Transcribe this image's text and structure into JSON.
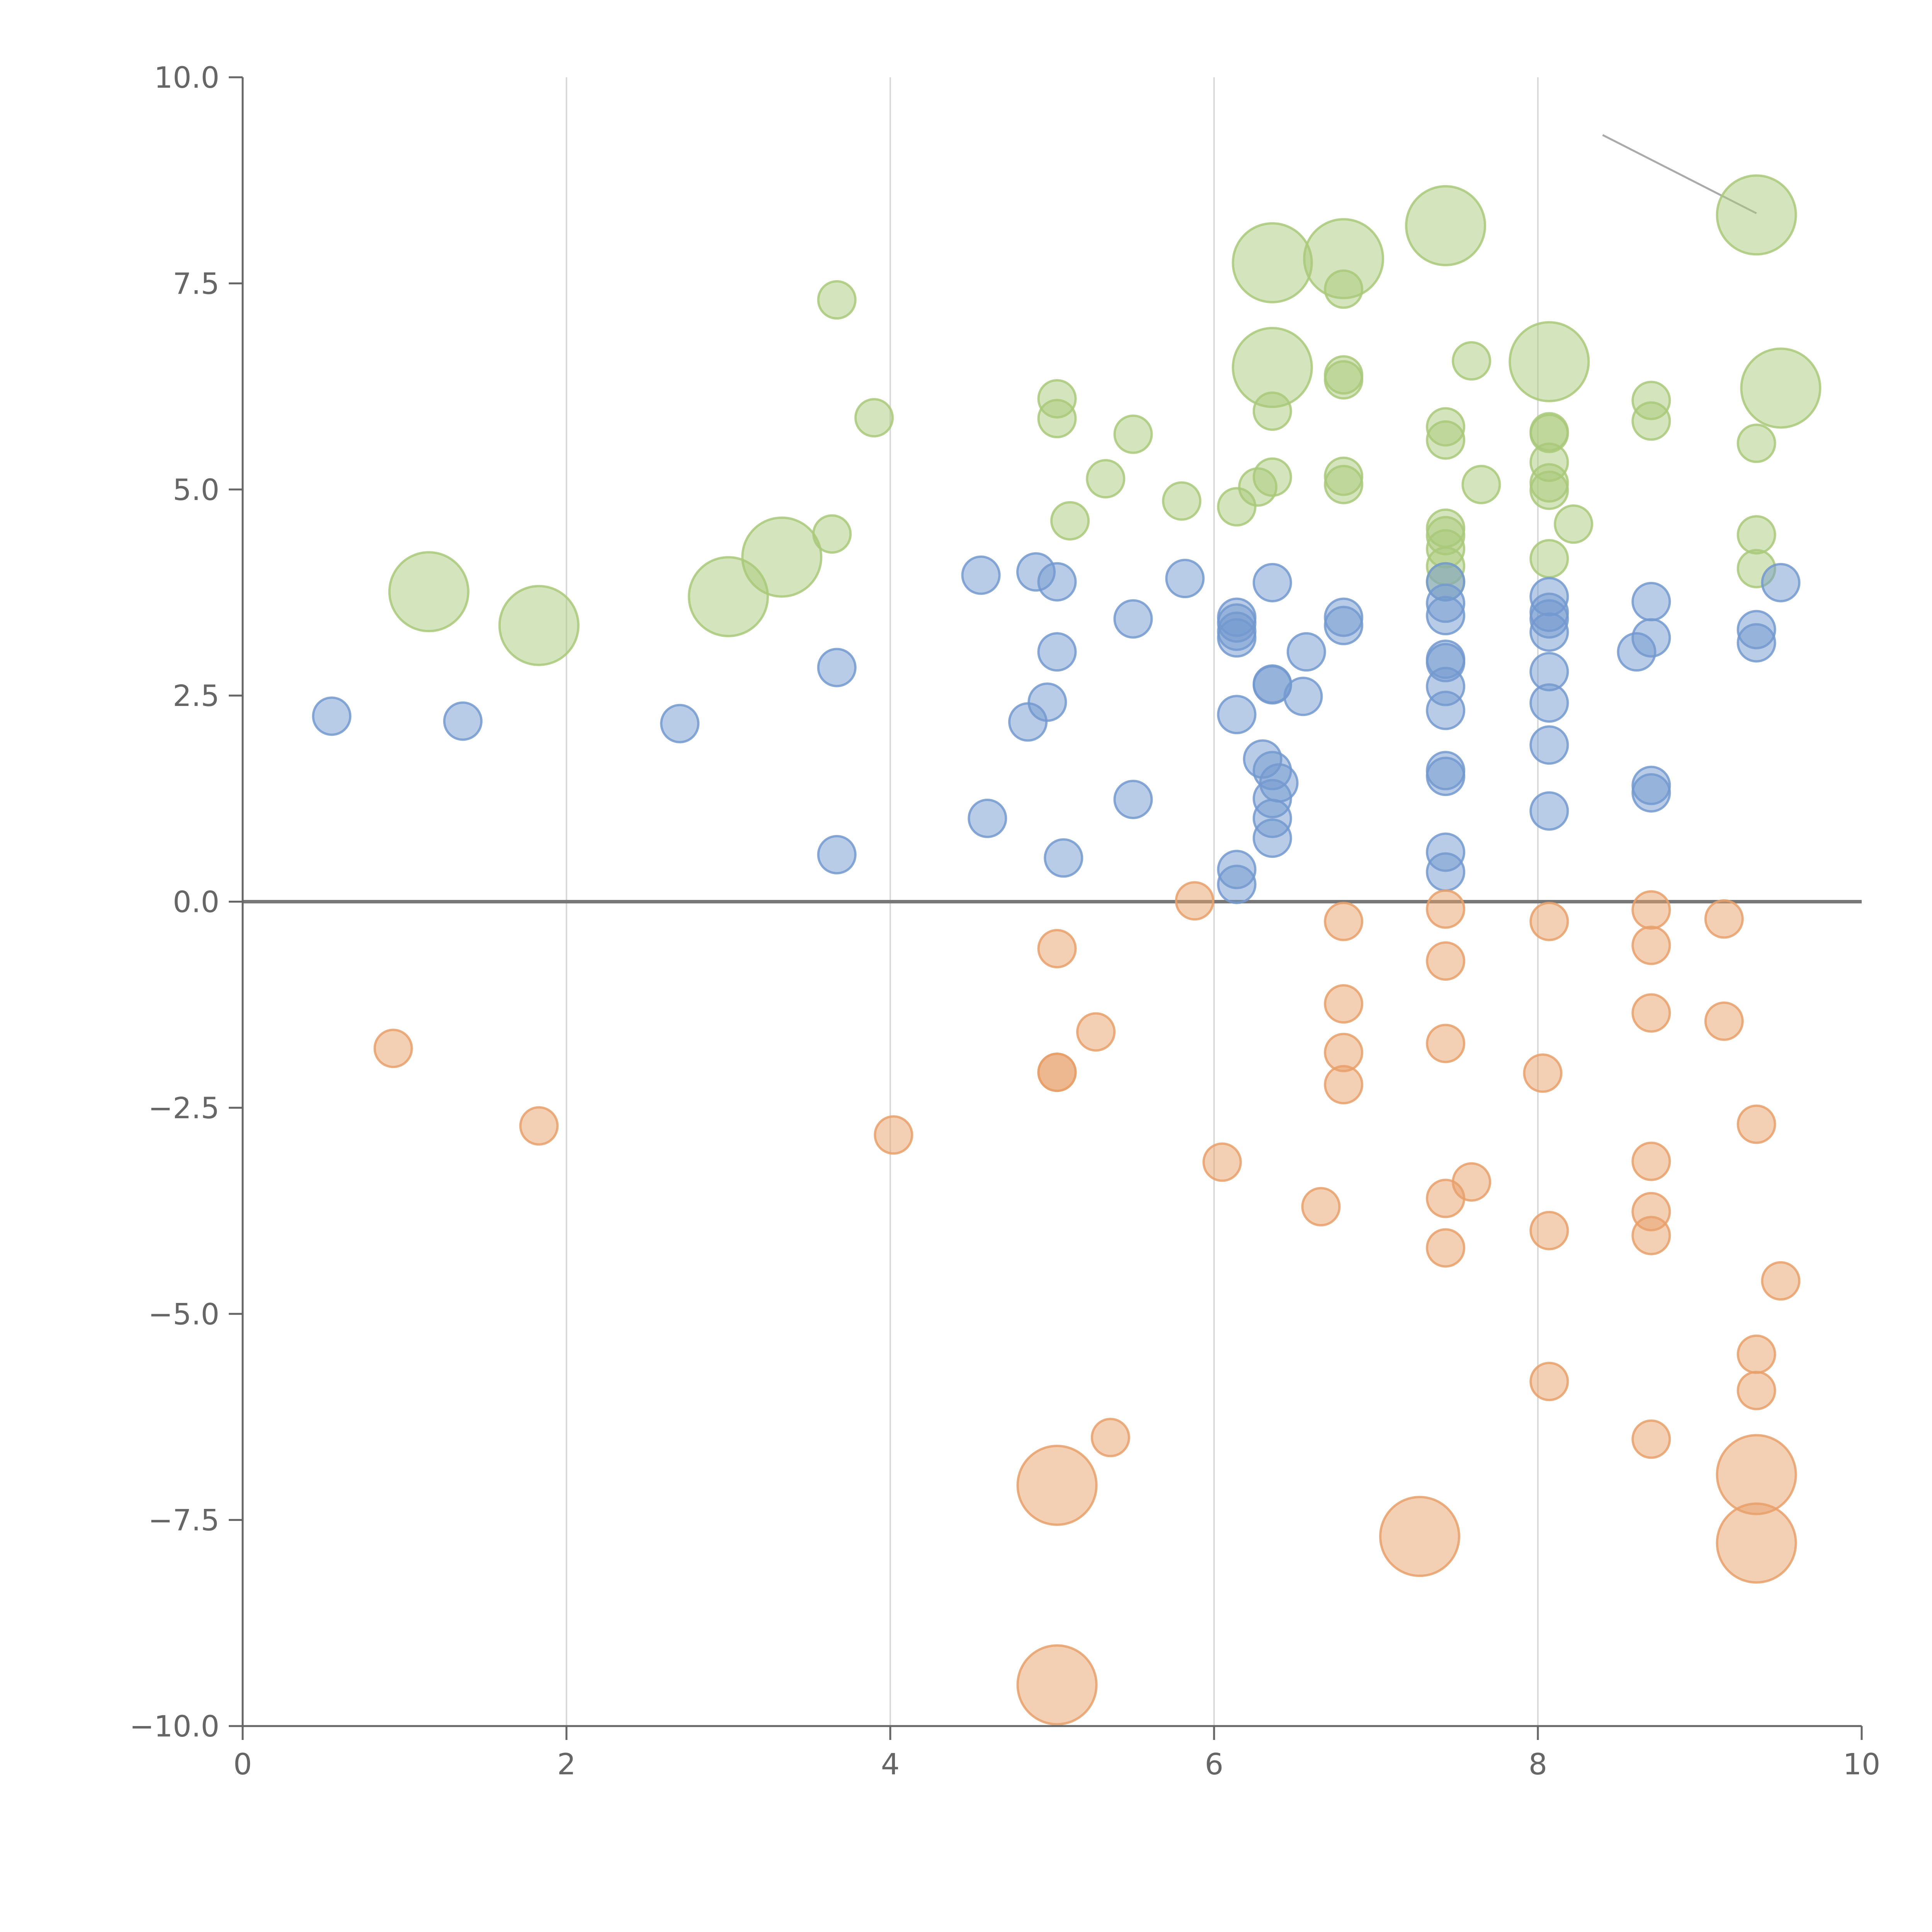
{
  "chart_data": {
    "type": "scatter",
    "title": "",
    "xlabel": "",
    "ylabel": "",
    "xlim": [
      0,
      10
    ],
    "ylim": [
      -10,
      10
    ],
    "x_ticks": [
      0,
      2,
      4,
      6,
      8,
      10
    ],
    "x_tick_labels": [
      "0",
      "2",
      "4",
      "6",
      "8",
      "10"
    ],
    "y_ticks": [
      -10,
      -7.5,
      -5,
      -2.5,
      0,
      2.5,
      5,
      7.5,
      10
    ],
    "y_tick_labels": [
      "−10.0",
      "−7.5",
      "−5.0",
      "−2.5",
      "0.0",
      "2.5",
      "5.0",
      "7.5",
      "10.0"
    ],
    "vertical_gridlines_at": [
      2,
      4,
      6,
      8
    ],
    "reference_line_y": 0,
    "annotation_leader_line": {
      "from": [
        8.4,
        9.3
      ],
      "to": [
        9.35,
        8.35
      ]
    },
    "colors": {
      "green": "#a9c97a",
      "blue": "#7399cf",
      "orange": "#e8a06a",
      "axis": "#666666",
      "grid": "#d9d9d9",
      "zero_line": "#777777"
    },
    "series": [
      {
        "name": "green",
        "color": "#a9c97a",
        "points": [
          [
            3.67,
            7.3,
            1
          ],
          [
            3.9,
            5.87,
            1
          ],
          [
            3.64,
            4.46,
            1
          ],
          [
            5.03,
            6.1,
            1
          ],
          [
            5.03,
            5.86,
            1
          ],
          [
            5.5,
            5.67,
            1
          ],
          [
            5.33,
            5.13,
            1
          ],
          [
            5.11,
            4.62,
            1
          ],
          [
            5.8,
            4.86,
            1
          ],
          [
            6.27,
            5.03,
            1
          ],
          [
            6.14,
            4.79,
            1
          ],
          [
            6.36,
            5.15,
            1
          ],
          [
            6.36,
            5.95,
            1
          ],
          [
            6.8,
            7.43,
            1
          ],
          [
            6.8,
            6.39,
            1
          ],
          [
            6.8,
            6.33,
            1
          ],
          [
            6.8,
            5.16,
            1
          ],
          [
            6.8,
            5.06,
            1
          ],
          [
            7.43,
            5.76,
            1
          ],
          [
            7.43,
            5.6,
            1
          ],
          [
            7.43,
            4.53,
            1
          ],
          [
            7.43,
            4.44,
            1
          ],
          [
            7.43,
            4.28,
            1
          ],
          [
            7.43,
            4.07,
            1
          ],
          [
            7.43,
            3.88,
            1
          ],
          [
            7.59,
            6.56,
            1
          ],
          [
            7.65,
            5.06,
            1
          ],
          [
            8.07,
            5.7,
            1
          ],
          [
            8.07,
            5.68,
            1
          ],
          [
            8.07,
            5.33,
            1
          ],
          [
            8.07,
            5.08,
            1
          ],
          [
            8.07,
            4.99,
            1
          ],
          [
            8.07,
            4.16,
            1
          ],
          [
            8.22,
            4.58,
            1
          ],
          [
            8.7,
            6.08,
            1
          ],
          [
            8.7,
            5.83,
            1
          ],
          [
            9.35,
            5.56,
            1
          ],
          [
            9.35,
            4.45,
            1
          ],
          [
            9.35,
            4.04,
            1
          ],
          [
            1.15,
            3.76,
            3
          ],
          [
            1.83,
            3.35,
            3
          ],
          [
            3.0,
            3.7,
            3
          ],
          [
            3.33,
            4.18,
            3
          ],
          [
            6.36,
            7.75,
            3
          ],
          [
            6.36,
            6.48,
            3
          ],
          [
            6.8,
            7.8,
            3
          ],
          [
            7.43,
            8.2,
            3
          ],
          [
            8.07,
            6.55,
            3
          ],
          [
            9.35,
            8.33,
            3
          ],
          [
            9.5,
            6.23,
            3
          ]
        ]
      },
      {
        "name": "blue",
        "color": "#7399cf",
        "points": [
          [
            0.55,
            2.25,
            1
          ],
          [
            1.36,
            2.19,
            1
          ],
          [
            2.7,
            2.16,
            1
          ],
          [
            3.67,
            2.84,
            1
          ],
          [
            3.67,
            0.57,
            1
          ],
          [
            4.6,
            1.01,
            1
          ],
          [
            4.56,
            3.96,
            1
          ],
          [
            4.9,
            4.0,
            1
          ],
          [
            5.03,
            3.88,
            1
          ],
          [
            5.03,
            3.03,
            1
          ],
          [
            4.97,
            2.42,
            1
          ],
          [
            4.85,
            2.18,
            1
          ],
          [
            5.07,
            0.53,
            1
          ],
          [
            5.5,
            3.43,
            1
          ],
          [
            5.5,
            1.24,
            1
          ],
          [
            5.82,
            3.92,
            1
          ],
          [
            6.14,
            3.45,
            1
          ],
          [
            6.14,
            3.38,
            1
          ],
          [
            6.14,
            3.28,
            1
          ],
          [
            6.14,
            3.2,
            1
          ],
          [
            6.14,
            2.27,
            1
          ],
          [
            6.14,
            0.39,
            1
          ],
          [
            6.14,
            0.21,
            1
          ],
          [
            6.36,
            3.87,
            1
          ],
          [
            6.36,
            2.64,
            1
          ],
          [
            6.36,
            2.63,
            1
          ],
          [
            6.3,
            1.73,
            1
          ],
          [
            6.36,
            1.59,
            1
          ],
          [
            6.4,
            1.44,
            1
          ],
          [
            6.36,
            1.25,
            1
          ],
          [
            6.36,
            1.01,
            1
          ],
          [
            6.36,
            0.77,
            1
          ],
          [
            6.57,
            3.03,
            1
          ],
          [
            6.55,
            2.49,
            1
          ],
          [
            6.8,
            3.45,
            1
          ],
          [
            6.8,
            3.35,
            1
          ],
          [
            7.43,
            3.88,
            1
          ],
          [
            7.43,
            3.62,
            1
          ],
          [
            7.43,
            3.47,
            1
          ],
          [
            7.43,
            2.94,
            1
          ],
          [
            7.43,
            2.9,
            1
          ],
          [
            7.43,
            2.61,
            1
          ],
          [
            7.43,
            2.32,
            1
          ],
          [
            7.43,
            1.59,
            1
          ],
          [
            7.43,
            1.52,
            1
          ],
          [
            7.43,
            0.6,
            1
          ],
          [
            7.43,
            0.36,
            1
          ],
          [
            8.07,
            3.7,
            1
          ],
          [
            8.07,
            3.51,
            1
          ],
          [
            8.07,
            3.43,
            1
          ],
          [
            8.07,
            3.27,
            1
          ],
          [
            8.07,
            2.79,
            1
          ],
          [
            8.07,
            2.41,
            1
          ],
          [
            8.07,
            1.9,
            1
          ],
          [
            8.07,
            1.1,
            1
          ],
          [
            8.61,
            3.03,
            1
          ],
          [
            8.7,
            3.64,
            1
          ],
          [
            8.7,
            3.2,
            1
          ],
          [
            8.7,
            1.41,
            1
          ],
          [
            8.7,
            1.32,
            1
          ],
          [
            9.35,
            3.3,
            1
          ],
          [
            9.35,
            3.14,
            1
          ],
          [
            9.5,
            3.87,
            1
          ]
        ]
      },
      {
        "name": "orange",
        "color": "#e8a06a",
        "points": [
          [
            0.93,
            -1.78,
            1
          ],
          [
            1.83,
            -2.72,
            1
          ],
          [
            4.02,
            -2.83,
            1
          ],
          [
            5.03,
            -0.57,
            1
          ],
          [
            5.03,
            -2.07,
            1
          ],
          [
            5.03,
            -2.07,
            1
          ],
          [
            5.27,
            -1.58,
            1
          ],
          [
            5.36,
            -6.5,
            1
          ],
          [
            5.88,
            0.01,
            1
          ],
          [
            6.05,
            -3.16,
            1
          ],
          [
            6.66,
            -3.7,
            1
          ],
          [
            6.8,
            -0.24,
            1
          ],
          [
            6.8,
            -1.24,
            1
          ],
          [
            6.8,
            -1.83,
            1
          ],
          [
            6.8,
            -2.22,
            1
          ],
          [
            7.43,
            -0.09,
            1
          ],
          [
            7.43,
            -0.72,
            1
          ],
          [
            7.43,
            -1.72,
            1
          ],
          [
            7.43,
            -3.6,
            1
          ],
          [
            7.59,
            -3.4,
            1
          ],
          [
            7.43,
            -4.2,
            1
          ],
          [
            8.07,
            -0.24,
            1
          ],
          [
            8.03,
            -2.08,
            1
          ],
          [
            8.07,
            -3.99,
            1
          ],
          [
            8.07,
            -5.82,
            1
          ],
          [
            8.7,
            -0.1,
            1
          ],
          [
            8.7,
            -0.53,
            1
          ],
          [
            8.7,
            -1.35,
            1
          ],
          [
            8.7,
            -3.15,
            1
          ],
          [
            8.7,
            -3.76,
            1
          ],
          [
            8.7,
            -4.05,
            1
          ],
          [
            8.7,
            -6.52,
            1
          ],
          [
            9.15,
            -0.21,
            1
          ],
          [
            9.15,
            -1.45,
            1
          ],
          [
            9.35,
            -2.7,
            1
          ],
          [
            9.35,
            -5.49,
            1
          ],
          [
            9.35,
            -5.93,
            1
          ],
          [
            9.5,
            -4.6,
            1
          ],
          [
            5.03,
            -7.08,
            3
          ],
          [
            5.03,
            -9.5,
            3
          ],
          [
            7.27,
            -7.7,
            3
          ],
          [
            9.35,
            -6.95,
            3
          ],
          [
            9.35,
            -7.78,
            3
          ]
        ]
      }
    ]
  }
}
